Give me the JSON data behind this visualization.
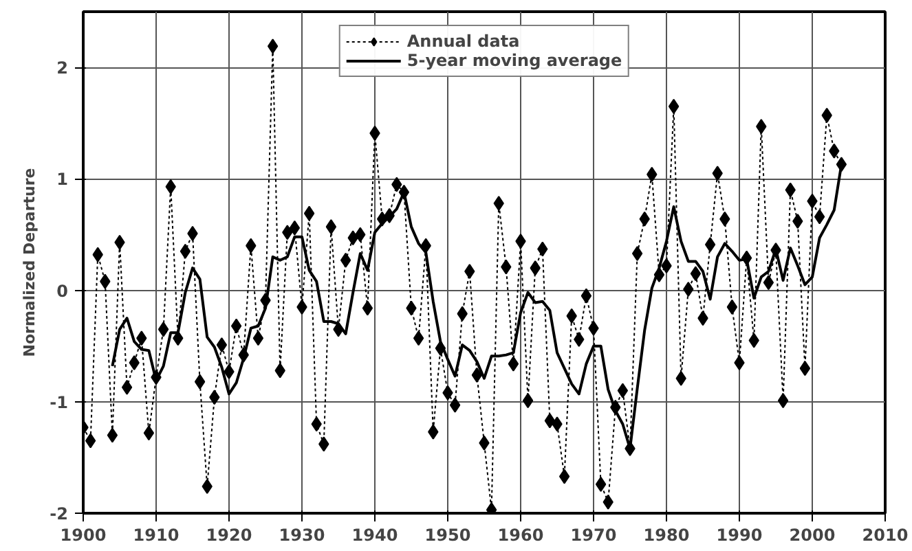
{
  "chart_data": {
    "type": "line",
    "ylabel": "Normalized Departure",
    "xlim": [
      1900,
      2010
    ],
    "ylim": [
      -2,
      2.5
    ],
    "xticks": [
      1900,
      1910,
      1920,
      1930,
      1940,
      1950,
      1960,
      1970,
      1980,
      1990,
      2000,
      2010
    ],
    "yticks": [
      -2,
      -1,
      0,
      1,
      2
    ],
    "grid": true,
    "legend": "top",
    "series": [
      {
        "name": "Annual data",
        "color": "#000000",
        "marker": "diamond",
        "line_style": "dotted",
        "x": [
          1900,
          1901,
          1902,
          1903,
          1904,
          1905,
          1906,
          1907,
          1908,
          1909,
          1910,
          1911,
          1912,
          1913,
          1914,
          1915,
          1916,
          1917,
          1918,
          1919,
          1920,
          1921,
          1922,
          1923,
          1924,
          1925,
          1926,
          1927,
          1928,
          1929,
          1930,
          1931,
          1932,
          1933,
          1934,
          1935,
          1936,
          1937,
          1938,
          1939,
          1940,
          1941,
          1942,
          1943,
          1944,
          1945,
          1946,
          1947,
          1948,
          1949,
          1950,
          1951,
          1952,
          1953,
          1954,
          1955,
          1956,
          1957,
          1958,
          1959,
          1960,
          1961,
          1962,
          1963,
          1964,
          1965,
          1966,
          1967,
          1968,
          1969,
          1970,
          1971,
          1972,
          1973,
          1974,
          1975,
          1976,
          1977,
          1978,
          1979,
          1980,
          1981,
          1982,
          1983,
          1984,
          1985,
          1986,
          1987,
          1988,
          1989,
          1990,
          1991,
          1992,
          1993,
          1994,
          1995,
          1996,
          1997,
          1998,
          1999,
          2000,
          2001,
          2002,
          2003,
          2004
        ],
        "values": [
          -1.23,
          -1.35,
          0.32,
          0.08,
          -1.3,
          0.43,
          -0.87,
          -0.65,
          -0.43,
          -1.28,
          -0.78,
          -0.35,
          0.93,
          -0.43,
          0.35,
          0.51,
          -0.82,
          -1.76,
          -0.96,
          -0.49,
          -0.73,
          -0.32,
          -0.58,
          0.4,
          -0.43,
          -0.09,
          2.19,
          -0.72,
          0.52,
          0.56,
          -0.15,
          0.69,
          -1.2,
          -1.38,
          0.57,
          -0.35,
          0.27,
          0.47,
          0.5,
          -0.16,
          1.41,
          0.64,
          0.67,
          0.95,
          0.88,
          -0.16,
          -0.43,
          0.4,
          -1.27,
          -0.52,
          -0.92,
          -1.03,
          -0.21,
          0.17,
          -0.76,
          -1.37,
          -1.97,
          0.78,
          0.21,
          -0.66,
          0.44,
          -0.99,
          0.2,
          0.37,
          -1.17,
          -1.2,
          -1.67,
          -0.23,
          -0.44,
          -0.05,
          -0.34,
          -1.74,
          -1.9,
          -1.05,
          -0.9,
          -1.42,
          0.33,
          0.64,
          1.04,
          0.14,
          0.22,
          1.65,
          -0.79,
          0.01,
          0.15,
          -0.25,
          0.41,
          1.05,
          0.64,
          -0.15,
          -0.65,
          0.29,
          -0.45,
          1.47,
          0.07,
          0.36,
          -0.99,
          0.9,
          0.62,
          -0.7,
          0.8,
          0.66,
          1.57,
          1.25,
          1.13
        ]
      },
      {
        "name": "5-year moving average",
        "color": "#000000",
        "marker": "none",
        "line_style": "solid",
        "x": [
          1904,
          1905,
          1906,
          1907,
          1908,
          1909,
          1910,
          1911,
          1912,
          1913,
          1914,
          1915,
          1916,
          1917,
          1918,
          1919,
          1920,
          1921,
          1922,
          1923,
          1924,
          1925,
          1926,
          1927,
          1928,
          1929,
          1930,
          1931,
          1932,
          1933,
          1934,
          1935,
          1936,
          1937,
          1938,
          1939,
          1940,
          1941,
          1942,
          1943,
          1944,
          1945,
          1946,
          1947,
          1948,
          1949,
          1950,
          1951,
          1952,
          1953,
          1954,
          1955,
          1956,
          1957,
          1958,
          1959,
          1960,
          1961,
          1962,
          1963,
          1964,
          1965,
          1966,
          1967,
          1968,
          1969,
          1970,
          1971,
          1972,
          1973,
          1974,
          1975,
          1976,
          1977,
          1978,
          1979,
          1980,
          1981,
          1982,
          1983,
          1984,
          1985,
          1986,
          1987,
          1988,
          1989,
          1990,
          1991,
          1992,
          1993,
          1994,
          1995,
          1996,
          1997,
          1998,
          1999,
          2000,
          2001,
          2002,
          2003,
          2004
        ],
        "values": [
          -0.68,
          -0.35,
          -0.25,
          -0.46,
          -0.53,
          -0.54,
          -0.81,
          -0.68,
          -0.38,
          -0.38,
          -0.02,
          0.2,
          0.1,
          -0.42,
          -0.51,
          -0.69,
          -0.93,
          -0.83,
          -0.61,
          -0.34,
          -0.32,
          -0.16,
          0.3,
          0.27,
          0.3,
          0.48,
          0.48,
          0.18,
          0.08,
          -0.28,
          -0.28,
          -0.3,
          -0.39,
          -0.02,
          0.33,
          0.18,
          0.52,
          0.6,
          0.66,
          0.73,
          0.88,
          0.57,
          0.42,
          0.34,
          -0.1,
          -0.46,
          -0.62,
          -0.77,
          -0.49,
          -0.54,
          -0.64,
          -0.79,
          -0.59,
          -0.59,
          -0.58,
          -0.56,
          -0.2,
          -0.02,
          -0.11,
          -0.1,
          -0.18,
          -0.56,
          -0.7,
          -0.84,
          -0.93,
          -0.66,
          -0.5,
          -0.5,
          -0.89,
          -1.08,
          -1.2,
          -1.42,
          -0.88,
          -0.36,
          0.02,
          0.2,
          0.44,
          0.75,
          0.44,
          0.26,
          0.26,
          0.17,
          -0.08,
          0.3,
          0.42,
          0.35,
          0.27,
          0.28,
          -0.07,
          0.12,
          0.17,
          0.37,
          0.09,
          0.38,
          0.22,
          0.05,
          0.12,
          0.47,
          0.59,
          0.72,
          1.13
        ]
      }
    ]
  }
}
